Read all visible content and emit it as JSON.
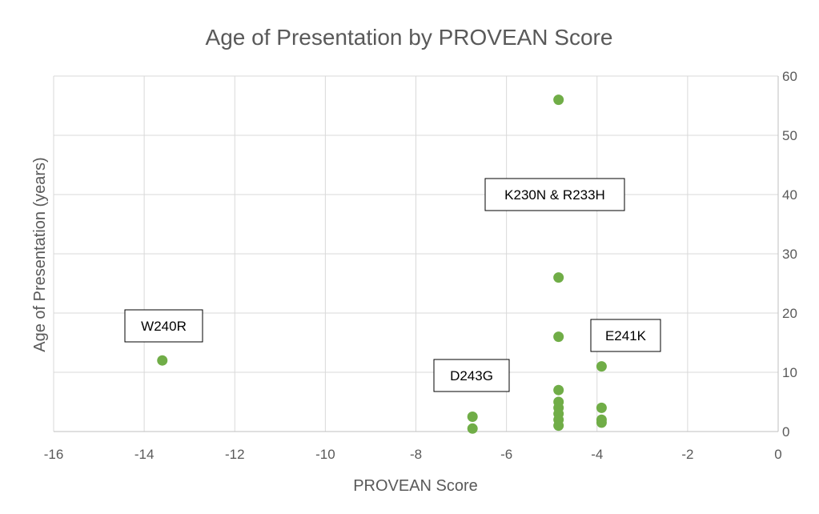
{
  "chart_data": {
    "type": "scatter",
    "title": "Age of Presentation by PROVEAN Score",
    "xlabel": "PROVEAN Score",
    "ylabel": "Age of Presentation (years)",
    "xlim": [
      -16,
      0
    ],
    "ylim": [
      0,
      60
    ],
    "xticks": [
      -16,
      -14,
      -12,
      -10,
      -8,
      -6,
      -4,
      -2,
      0
    ],
    "yticks": [
      0,
      10,
      20,
      30,
      40,
      50,
      60
    ],
    "y_axis_side": "right",
    "grid": true,
    "series": [
      {
        "name": "Age of Presentation",
        "color": "#70ad47",
        "points": [
          {
            "x": -13.6,
            "y": 12
          },
          {
            "x": -6.75,
            "y": 2.5
          },
          {
            "x": -6.75,
            "y": 0.5
          },
          {
            "x": -4.85,
            "y": 56
          },
          {
            "x": -4.85,
            "y": 26
          },
          {
            "x": -4.85,
            "y": 16
          },
          {
            "x": -4.85,
            "y": 7
          },
          {
            "x": -4.85,
            "y": 5
          },
          {
            "x": -4.85,
            "y": 4
          },
          {
            "x": -4.85,
            "y": 3
          },
          {
            "x": -4.85,
            "y": 2
          },
          {
            "x": -4.85,
            "y": 1
          },
          {
            "x": -3.9,
            "y": 11
          },
          {
            "x": -3.9,
            "y": 4
          },
          {
            "x": -3.9,
            "y": 2
          },
          {
            "x": -3.9,
            "y": 1.5
          }
        ]
      }
    ],
    "annotations": [
      {
        "text": "W240R"
      },
      {
        "text": "D243G"
      },
      {
        "text": "K230N & R233H"
      },
      {
        "text": "E241K"
      }
    ]
  }
}
